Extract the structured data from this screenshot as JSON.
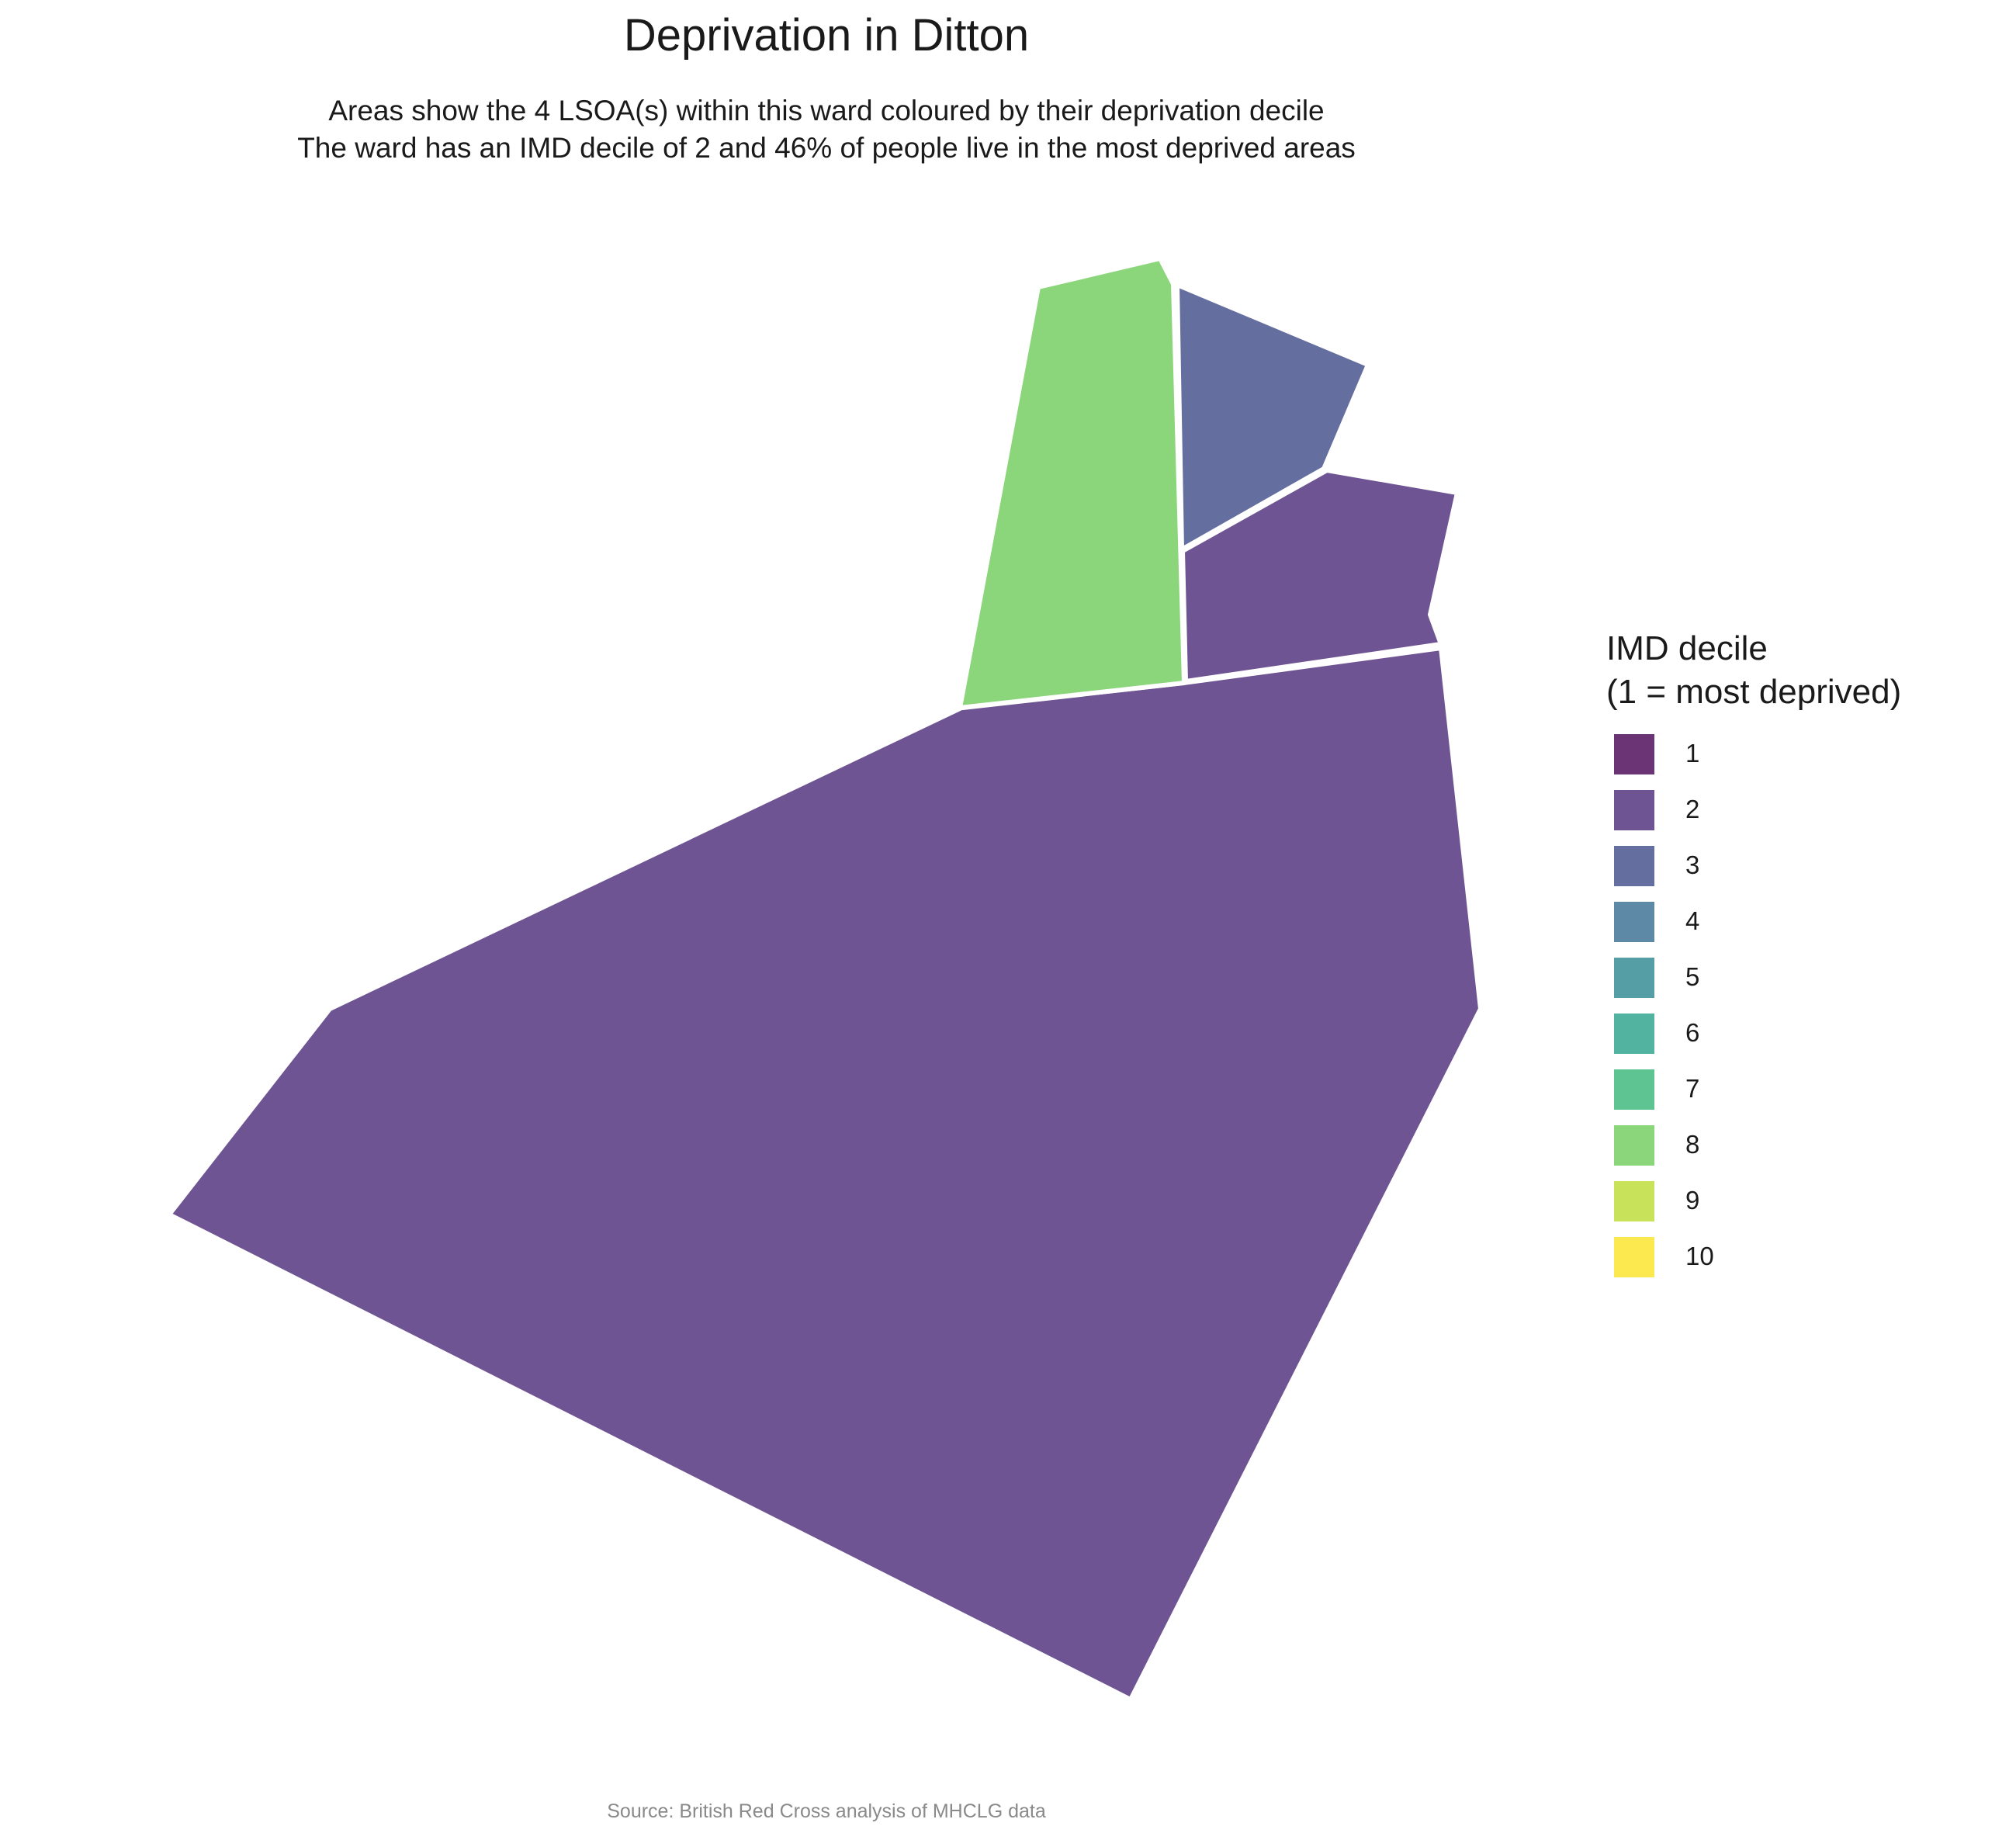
{
  "chart": {
    "title": "Deprivation in Ditton",
    "subtitle_line1": "Areas show the 4 LSOA(s) within this ward coloured by their deprivation decile",
    "subtitle_line2": "The ward has an IMD decile of 2 and 46% of people live in the most deprived areas",
    "caption": "Source: British Red Cross analysis of MHCLG data"
  },
  "legend": {
    "title_line1": "IMD decile",
    "title_line2": "(1 = most deprived)",
    "items": [
      {
        "label": "1",
        "color": "#6b3475"
      },
      {
        "label": "2",
        "color": "#6e5492"
      },
      {
        "label": "3",
        "color": "#646e9f"
      },
      {
        "label": "4",
        "color": "#5d88a6"
      },
      {
        "label": "5",
        "color": "#569ea6"
      },
      {
        "label": "6",
        "color": "#52b3a0"
      },
      {
        "label": "7",
        "color": "#5ec592"
      },
      {
        "label": "8",
        "color": "#8bd67a"
      },
      {
        "label": "9",
        "color": "#c8e35a"
      },
      {
        "label": "10",
        "color": "#fce94f"
      }
    ]
  },
  "chart_data": {
    "type": "choropleth",
    "areas": [
      {
        "name": "LSOA (large south)",
        "decile": 2,
        "color": "#6e5492"
      },
      {
        "name": "LSOA (north-east)",
        "decile": 2,
        "color": "#6e5492"
      },
      {
        "name": "LSOA (north-centre)",
        "decile": 3,
        "color": "#646e9f"
      },
      {
        "name": "LSOA (north-west)",
        "decile": 8,
        "color": "#8bd67a"
      }
    ]
  }
}
